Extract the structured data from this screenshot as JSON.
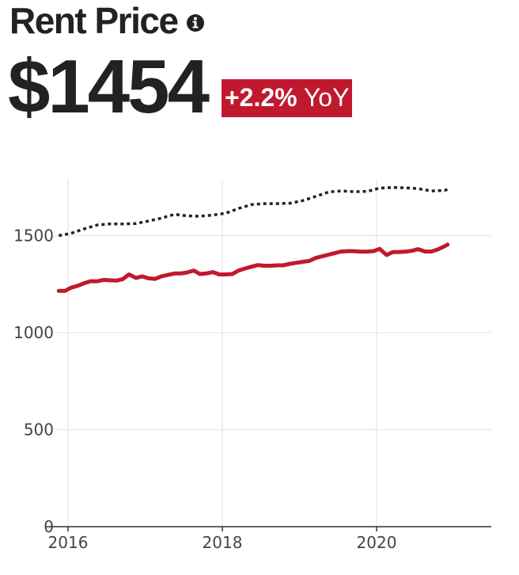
{
  "header": {
    "title": "Rent Price",
    "info_icon": "info-circle-icon",
    "value": "$1454",
    "yoy_change": "+2.2%",
    "yoy_suffix": "YoY"
  },
  "colors": {
    "accent": "#c0192e",
    "comparison": "#222222",
    "grid": "#e6e6e6",
    "axis": "#333333",
    "text": "#222222"
  },
  "chart_data": {
    "type": "line",
    "title": "",
    "xlabel": "",
    "ylabel": "",
    "xlim": [
      2015.83,
      2021.5
    ],
    "ylim": [
      0,
      1750
    ],
    "x_ticks": [
      2016,
      2018,
      2020
    ],
    "y_ticks": [
      0,
      500,
      1000,
      1500
    ],
    "grid": true,
    "legend": "none",
    "series": [
      {
        "style": "solid",
        "color": "#c0192e",
        "x": [
          2015.88,
          2015.96,
          2016.04,
          2016.13,
          2016.21,
          2016.29,
          2016.38,
          2016.46,
          2016.54,
          2016.63,
          2016.71,
          2016.79,
          2016.88,
          2016.96,
          2017.04,
          2017.13,
          2017.21,
          2017.29,
          2017.38,
          2017.46,
          2017.54,
          2017.63,
          2017.71,
          2017.79,
          2017.88,
          2017.96,
          2018.04,
          2018.13,
          2018.21,
          2018.29,
          2018.38,
          2018.46,
          2018.54,
          2018.63,
          2018.71,
          2018.79,
          2018.88,
          2018.96,
          2019.04,
          2019.13,
          2019.21,
          2019.29,
          2019.38,
          2019.46,
          2019.54,
          2019.63,
          2019.71,
          2019.79,
          2019.88,
          2019.96,
          2020.04,
          2020.13,
          2020.21,
          2020.29,
          2020.38,
          2020.46,
          2020.54,
          2020.63,
          2020.71,
          2020.79,
          2020.88,
          2020.92
        ],
        "y": [
          1215,
          1215,
          1232,
          1242,
          1255,
          1265,
          1265,
          1272,
          1270,
          1268,
          1276,
          1300,
          1282,
          1290,
          1280,
          1277,
          1290,
          1297,
          1305,
          1305,
          1310,
          1320,
          1302,
          1305,
          1312,
          1300,
          1300,
          1302,
          1320,
          1330,
          1340,
          1348,
          1345,
          1345,
          1347,
          1347,
          1355,
          1360,
          1365,
          1370,
          1385,
          1393,
          1402,
          1410,
          1418,
          1420,
          1420,
          1417,
          1418,
          1420,
          1432,
          1400,
          1415,
          1415,
          1418,
          1422,
          1430,
          1418,
          1418,
          1428,
          1445,
          1454
        ]
      },
      {
        "style": "dotted",
        "color": "#222222",
        "x": [
          2015.88,
          2016.04,
          2016.21,
          2016.38,
          2016.54,
          2016.71,
          2016.88,
          2017.04,
          2017.21,
          2017.38,
          2017.54,
          2017.71,
          2017.88,
          2018.04,
          2018.21,
          2018.38,
          2018.54,
          2018.71,
          2018.88,
          2019.04,
          2019.21,
          2019.38,
          2019.54,
          2019.71,
          2019.88,
          2020.04,
          2020.21,
          2020.38,
          2020.54,
          2020.71,
          2020.88,
          2020.92
        ],
        "y": [
          1500,
          1512,
          1535,
          1555,
          1560,
          1560,
          1562,
          1575,
          1590,
          1610,
          1602,
          1600,
          1606,
          1615,
          1640,
          1660,
          1665,
          1665,
          1667,
          1680,
          1702,
          1725,
          1730,
          1726,
          1728,
          1745,
          1748,
          1746,
          1742,
          1730,
          1733,
          1738
        ]
      }
    ]
  }
}
